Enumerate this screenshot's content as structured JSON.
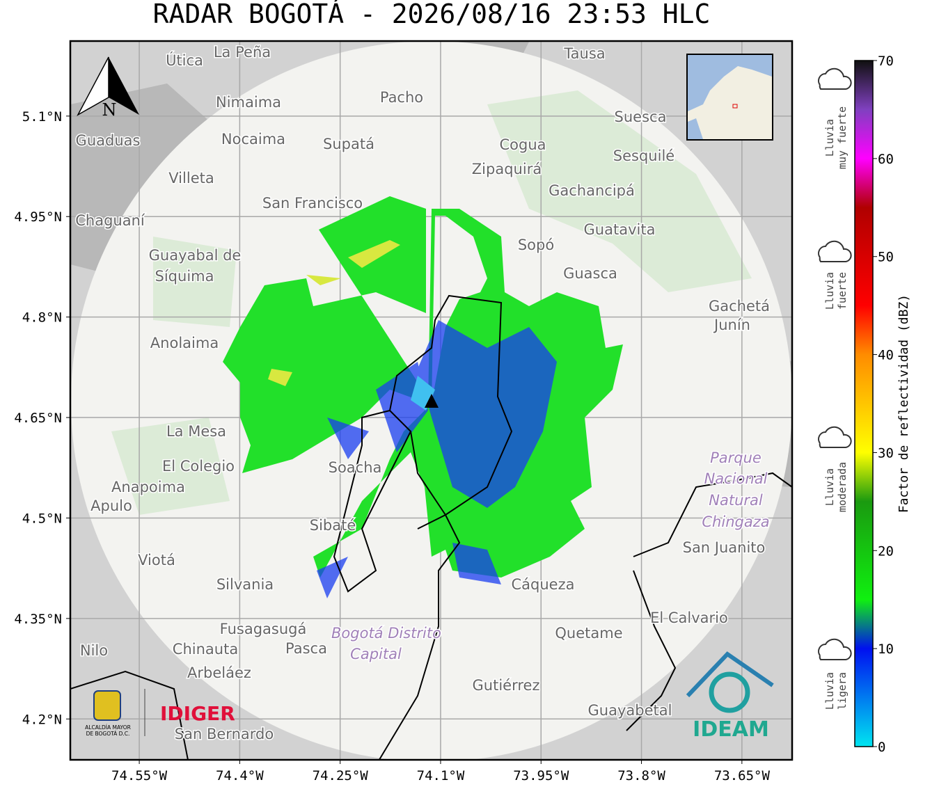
{
  "header": {
    "title": "RADAR BOGOTÁ - 2026/08/16 23:53 HLC"
  },
  "map": {
    "lon_range": [
      -74.653,
      -73.575
    ],
    "lat_range": [
      4.139,
      5.212
    ],
    "lon_ticks": [
      {
        "value": -74.55,
        "label": "74.55°W"
      },
      {
        "value": -74.4,
        "label": "74.4°W"
      },
      {
        "value": -74.25,
        "label": "74.25°W"
      },
      {
        "value": -74.1,
        "label": "74.1°W"
      },
      {
        "value": -73.95,
        "label": "73.95°W"
      },
      {
        "value": -73.8,
        "label": "73.8°W"
      },
      {
        "value": -73.65,
        "label": "73.65°W"
      }
    ],
    "lat_ticks": [
      {
        "value": 5.1,
        "label": "5.1°N"
      },
      {
        "value": 4.95,
        "label": "4.95°N"
      },
      {
        "value": 4.8,
        "label": "4.8°N"
      },
      {
        "value": 4.65,
        "label": "4.65°N"
      },
      {
        "value": 4.5,
        "label": "4.5°N"
      },
      {
        "value": 4.35,
        "label": "4.35°N"
      },
      {
        "value": 4.2,
        "label": "4.2°N"
      }
    ],
    "north_label": "N",
    "places": [
      "La Peña",
      "Útica",
      "Tausa",
      "Pacho",
      "Nimaima",
      "Suesca",
      "Nocaima",
      "Supatá",
      "Guaduas",
      "Cogua",
      "Sesquilé",
      "Zipaquirá",
      "Villeta",
      "Gachancipá",
      "San Francisco",
      "Chaguaní",
      "Guatavita",
      "Sopó",
      "Guayabal de",
      "Síquima",
      "Guasca",
      "Gachetá",
      "Junín",
      "Anolaima",
      "La Mesa",
      "El Colegio",
      "Soacha",
      "Parque",
      "Nacional",
      "Natural",
      "Chingaza",
      "Anapoima",
      "Apulo",
      "Sibaté",
      "San Juanito",
      "Viotá",
      "Silvania",
      "Cáqueza",
      "El Calvario",
      "Fusagasugá",
      "Quetame",
      "Bogotá Distrito",
      "Capital",
      "Nilo",
      "Chinauta",
      "Pasca",
      "Arbeláez",
      "Gutiérrez",
      "Guayabetal",
      "San Bernardo"
    ]
  },
  "logos": {
    "alcaldia": [
      "ALCALDÍA MAYOR",
      "DE BOGOTÁ D.C."
    ],
    "idiger": "IDIGER",
    "ideam": "IDEAM"
  },
  "colorbar": {
    "label": "Factor de reflectividad (dBZ)",
    "range": [
      0,
      70
    ],
    "ticks": [
      0,
      10,
      20,
      30,
      40,
      50,
      60,
      70
    ],
    "colormap": [
      {
        "value": 0,
        "color": "#00e5f0"
      },
      {
        "value": 10,
        "color": "#0010f0"
      },
      {
        "value": 15,
        "color": "#10f010"
      },
      {
        "value": 25,
        "color": "#1a9a10"
      },
      {
        "value": 30,
        "color": "#ffff00"
      },
      {
        "value": 40,
        "color": "#ff8c00"
      },
      {
        "value": 45,
        "color": "#ff0000"
      },
      {
        "value": 55,
        "color": "#b00000"
      },
      {
        "value": 60,
        "color": "#ff00ff"
      },
      {
        "value": 65,
        "color": "#8040c0"
      },
      {
        "value": 70,
        "color": "#101010"
      }
    ],
    "categories": [
      [
        "Lluvia",
        "muy fuerte"
      ],
      [
        "Lluvia",
        "fuerte"
      ],
      [
        "Lluvia",
        "moderada"
      ],
      [
        "Lluvia",
        "ligera"
      ]
    ]
  }
}
